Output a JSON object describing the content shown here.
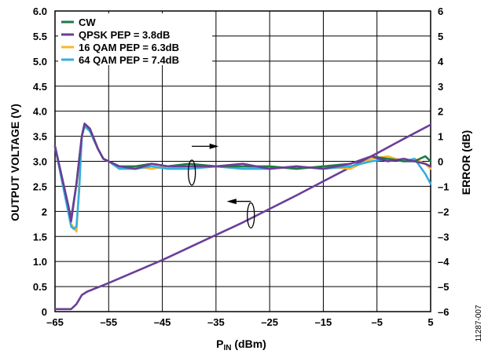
{
  "chart_data": {
    "type": "line",
    "xlabel_main": "P",
    "xlabel_sub": "IN",
    "xlabel_unit": " (dBm)",
    "ylabel_left": "OUTPUT VOLTAGE (V)",
    "ylabel_right": "ERROR (dB)",
    "figure_id": "11287-007",
    "xlim": [
      -65,
      5
    ],
    "ylim_left": [
      0,
      6
    ],
    "ylim_right": [
      -6,
      6
    ],
    "x_ticks": [
      "–65",
      "–55",
      "–45",
      "–35",
      "–25",
      "–15",
      "–5",
      "5"
    ],
    "y_left_ticks": [
      "0",
      "0.5",
      "1.0",
      "1.5",
      "2",
      "2.5",
      "3.0",
      "3.5",
      "4.0",
      "4.5",
      "5.0",
      "5.5",
      "6.0"
    ],
    "y_right_ticks": [
      "–6",
      "–5",
      "–4",
      "–3",
      "–2",
      "–1",
      "0",
      "1",
      "2",
      "3",
      "4",
      "5",
      "6"
    ],
    "legend_placement": "top-left",
    "grid": true,
    "voltage_curve": {
      "axis": "left",
      "color": "#6a3e98",
      "x": [
        -65,
        -62,
        -61,
        -60,
        -59,
        -55,
        -50,
        -45,
        -40,
        -35,
        -30,
        -25,
        -20,
        -15,
        -10,
        -5,
        0,
        5
      ],
      "y": [
        0.05,
        0.05,
        0.15,
        0.33,
        0.4,
        0.57,
        0.8,
        1.03,
        1.28,
        1.53,
        1.78,
        2.05,
        2.32,
        2.6,
        2.88,
        3.16,
        3.45,
        3.73
      ]
    },
    "series": [
      {
        "name": "CW",
        "color": "#1f7a45",
        "axis": "right",
        "x": [
          -65,
          -62.5,
          -62,
          -61,
          -60,
          -59.5,
          -58.5,
          -57,
          -56,
          -55,
          -53,
          -50,
          -47,
          -44,
          -40,
          -35,
          -30,
          -25,
          -20,
          -15,
          -10,
          -6,
          -3,
          0,
          2,
          4,
          5
        ],
        "y": [
          0.6,
          -1.8,
          -2.3,
          -0.9,
          1.0,
          1.5,
          1.3,
          0.5,
          0.1,
          0.0,
          -0.2,
          -0.2,
          -0.1,
          -0.2,
          -0.1,
          -0.2,
          -0.2,
          -0.2,
          -0.3,
          -0.2,
          -0.1,
          0.2,
          0.1,
          0.0,
          0.0,
          0.2,
          0.0
        ]
      },
      {
        "name": "QPSK PEP = 3.8dB",
        "color": "#6a3e98",
        "axis": "right",
        "x": [
          -65,
          -62.5,
          -62,
          -61,
          -60,
          -59.5,
          -58.5,
          -57,
          -56,
          -55,
          -53,
          -50,
          -47,
          -44,
          -40,
          -35,
          -30,
          -25,
          -20,
          -15,
          -10,
          -6,
          -3,
          0,
          2,
          4,
          5
        ],
        "y": [
          0.6,
          -1.8,
          -2.4,
          -0.9,
          1.0,
          1.5,
          1.3,
          0.5,
          0.1,
          0.0,
          -0.2,
          -0.3,
          -0.1,
          -0.2,
          -0.2,
          -0.2,
          -0.1,
          -0.3,
          -0.2,
          -0.3,
          -0.1,
          0.2,
          0.0,
          0.1,
          0.0,
          -0.1,
          -0.2
        ]
      },
      {
        "name": "16 QAM PEP = 6.3dB",
        "color": "#f5b82e",
        "axis": "right",
        "x": [
          -65,
          -62,
          -61,
          -60.5,
          -60,
          -59.5,
          -58.5,
          -57,
          -56,
          -55,
          -53,
          -50,
          -47,
          -44,
          -40,
          -35,
          -30,
          -25,
          -20,
          -15,
          -10,
          -6,
          -3,
          0,
          2,
          4,
          5
        ],
        "y": [
          0.6,
          -2.5,
          -2.8,
          -1.0,
          1.0,
          1.4,
          1.2,
          0.5,
          0.1,
          0.0,
          -0.3,
          -0.2,
          -0.3,
          -0.2,
          -0.3,
          -0.2,
          -0.3,
          -0.2,
          -0.3,
          -0.2,
          -0.3,
          0.1,
          0.2,
          0.0,
          0.1,
          -0.1,
          -0.3
        ]
      },
      {
        "name": "64 QAM PEP = 7.4dB",
        "color": "#35aee0",
        "axis": "right",
        "x": [
          -65,
          -62,
          -61.5,
          -61,
          -60.5,
          -60,
          -59.5,
          -58.5,
          -57,
          -56,
          -55,
          -53,
          -50,
          -47,
          -44,
          -40,
          -35,
          -30,
          -25,
          -20,
          -15,
          -10,
          -6,
          -3,
          0,
          2,
          4,
          5
        ],
        "y": [
          0.6,
          -2.6,
          -2.7,
          -2.6,
          -1.2,
          1.0,
          1.4,
          1.2,
          0.5,
          0.1,
          0.0,
          -0.3,
          -0.3,
          -0.2,
          -0.3,
          -0.3,
          -0.2,
          -0.3,
          -0.3,
          -0.2,
          -0.3,
          -0.2,
          0.0,
          0.1,
          0.0,
          0.1,
          -0.5,
          -0.9
        ]
      }
    ]
  }
}
